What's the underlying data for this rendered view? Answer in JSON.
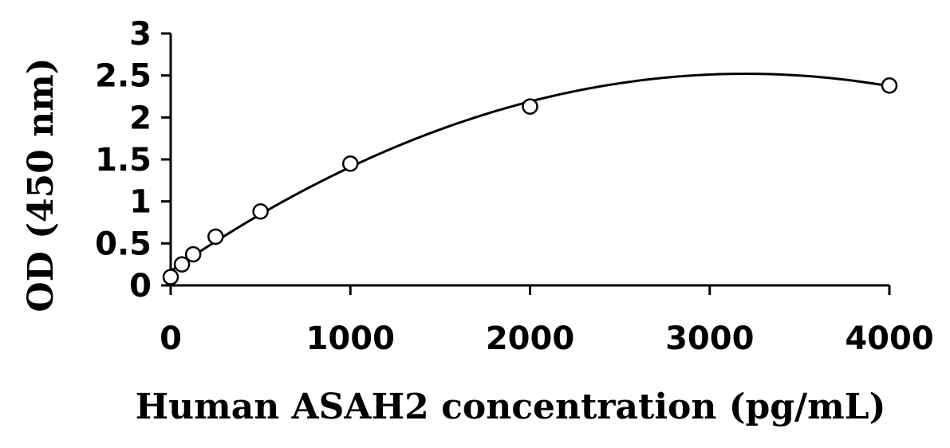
{
  "chart_data": {
    "type": "scatter",
    "xlabel": "Human ASAH2 concentration (pg/mL)",
    "ylabel": "OD (450 nm)",
    "xlim": [
      0,
      4000
    ],
    "ylim": [
      0,
      3
    ],
    "x_ticks": [
      "0",
      "1000",
      "2000",
      "3000",
      "4000"
    ],
    "y_ticks": [
      "0",
      "0.5",
      "1",
      "1.5",
      "2",
      "2.5",
      "3"
    ],
    "grid": false,
    "legend": "none",
    "colors": {
      "line": "#000000",
      "marker_fill": "#ffffff"
    },
    "series": [
      {
        "marker": "open-circle",
        "x": [
          0,
          62.5,
          125,
          250,
          500,
          1000,
          2000,
          4000
        ],
        "y": [
          0.1,
          0.25,
          0.37,
          0.58,
          0.88,
          1.45,
          2.13,
          2.38
        ]
      }
    ],
    "fit": {
      "type": "polynomial-2",
      "y_at_0": 0.17,
      "peak_x": 3200,
      "peak_y": 2.52
    }
  }
}
